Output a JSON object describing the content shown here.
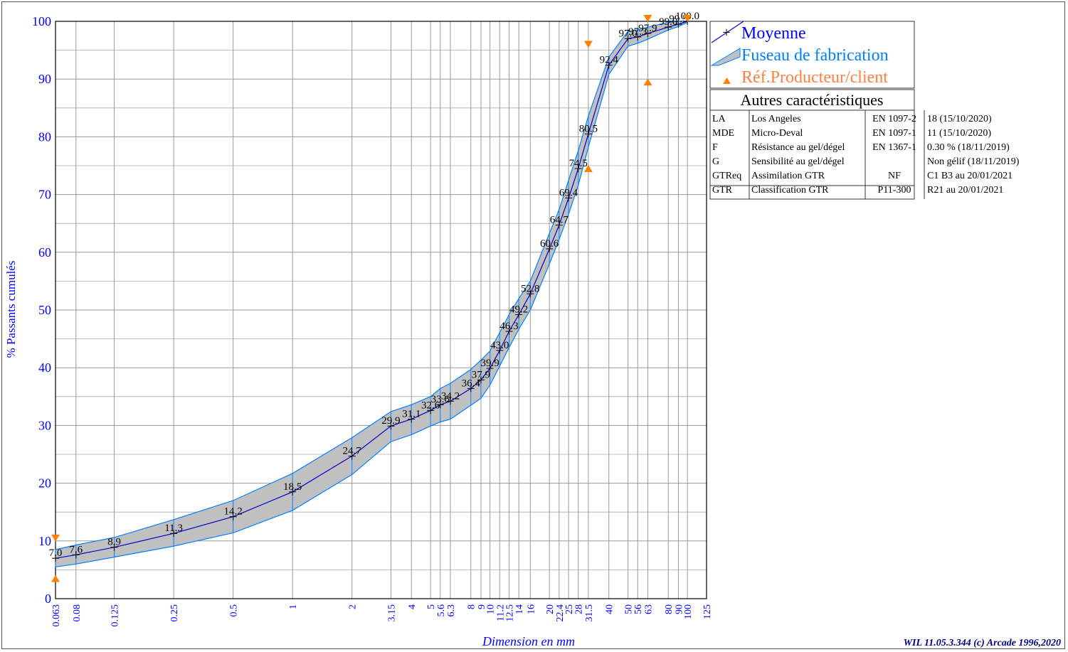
{
  "chart_data": {
    "type": "line",
    "title": "",
    "xlabel": "Dimension en mm",
    "ylabel": "% Passants cumulés",
    "x_scale": "log",
    "xlim": [
      0.063,
      125
    ],
    "ylim": [
      0,
      100
    ],
    "grid": true,
    "legend_position": "top-right",
    "x_ticks": [
      "0.063",
      "0.08",
      "0.125",
      "0.25",
      "0.5",
      "1",
      "2",
      "3.15",
      "4",
      "5",
      "5.6",
      "6.3",
      "8",
      "9",
      "10",
      "11.2",
      "12.5",
      "14",
      "16",
      "20",
      "22.4",
      "25",
      "28",
      "31.5",
      "40",
      "50",
      "56",
      "63",
      "80",
      "90",
      "100",
      "125"
    ],
    "y_ticks": [
      "0",
      "10",
      "20",
      "30",
      "40",
      "50",
      "60",
      "70",
      "80",
      "90",
      "100"
    ],
    "series": [
      {
        "name": "Moyenne",
        "color": "#0000cc",
        "x": [
          0.063,
          0.08,
          0.125,
          0.25,
          0.5,
          1,
          2,
          3.15,
          4,
          5,
          5.6,
          6.3,
          8,
          9,
          10,
          11.2,
          12.5,
          14,
          16,
          20,
          22.4,
          25,
          28,
          31.5,
          40,
          50,
          56,
          63,
          80,
          90,
          100
        ],
        "y": [
          7.0,
          7.6,
          8.9,
          11.3,
          14.2,
          18.5,
          24.7,
          29.9,
          31.1,
          32.6,
          33.6,
          34.2,
          36.4,
          37.9,
          39.9,
          43.0,
          46.3,
          49.2,
          52.8,
          60.6,
          64.7,
          69.4,
          74.5,
          80.5,
          92.4,
          97.0,
          97.3,
          97.9,
          99.0,
          99.5,
          100.0
        ],
        "labels": [
          "7.0",
          "7.6",
          "8.9",
          "11.3",
          "14.2",
          "18.5",
          "24.7",
          "29.9",
          "31.1",
          "32.6",
          "33.6",
          "34.2",
          "36.4",
          "37.9",
          "39.9",
          "43.0",
          "46.3",
          "49.2",
          "52.8",
          "60.6",
          "64.7",
          "69.4",
          "74.5",
          "80.5",
          "92.4",
          "97.0",
          "97.3",
          "97.9",
          "99.0",
          "99.5",
          "100.0"
        ]
      },
      {
        "name": "Fuseau de fabrication",
        "color": "#0080ff",
        "fill": "#c0c0c0",
        "x": [
          0.063,
          0.08,
          0.125,
          0.25,
          0.5,
          1,
          2,
          3.15,
          4,
          5,
          5.6,
          6.3,
          8,
          9,
          10,
          11.2,
          12.5,
          14,
          16,
          20,
          22.4,
          25,
          28,
          31.5,
          40,
          50,
          56,
          63,
          80,
          90,
          100
        ],
        "upper": [
          8.5,
          9.3,
          10.6,
          13.7,
          17.0,
          21.7,
          27.9,
          32.4,
          33.6,
          35.0,
          36.4,
          37.3,
          39.7,
          41.3,
          42.9,
          46.1,
          49.2,
          52.0,
          55.0,
          63.3,
          67.4,
          72.5,
          77.6,
          83.6,
          93.8,
          98.3,
          98.5,
          99.0,
          99.8,
          100.0,
          100.0
        ],
        "lower": [
          5.5,
          6.0,
          7.2,
          9.1,
          11.4,
          15.3,
          21.5,
          27.2,
          28.4,
          29.9,
          30.6,
          31.1,
          33.5,
          34.7,
          37.0,
          40.3,
          43.5,
          46.7,
          50.0,
          58.0,
          62.2,
          66.6,
          71.6,
          78.2,
          90.8,
          95.7,
          96.2,
          96.9,
          98.5,
          99.1,
          99.8
        ]
      },
      {
        "name": "Réf.Producteur/client",
        "color": "#ff8000",
        "points_up": [
          [
            0.063,
            3.5
          ],
          [
            31.5,
            74.5
          ],
          [
            63,
            89.5
          ]
        ],
        "points_down": [
          [
            0.063,
            10.5
          ],
          [
            31.5,
            96
          ],
          [
            63,
            100.5
          ],
          [
            100,
            100.5
          ]
        ]
      }
    ]
  },
  "legend": {
    "items": [
      {
        "label": "Moyenne",
        "color": "#0000ff"
      },
      {
        "label": "Fuseau de fabrication",
        "color": "#0080ff"
      },
      {
        "label": "Réf.Producteur/client",
        "color": "#ff8040"
      }
    ]
  },
  "characteristics": {
    "title": "Autres caractéristiques",
    "rows": [
      {
        "code": "LA",
        "name": "Los Angeles",
        "norm": "EN 1097-2",
        "value": "18   (15/10/2020)"
      },
      {
        "code": "MDE",
        "name": "Micro-Deval",
        "norm": "EN 1097-1",
        "value": "11   (15/10/2020)"
      },
      {
        "code": "F",
        "name": "Résistance au gel/dégel",
        "norm": "EN 1367-1",
        "value": "0.30 %  (18/11/2019)"
      },
      {
        "code": "G",
        "name": "Sensibilité au gel/dégel",
        "norm": "",
        "value": "Non gélif  (18/11/2019)"
      },
      {
        "code": "GTReq",
        "name": "Assimilation GTR",
        "norm": "NF",
        "value": "C1 B3  au 20/01/2021"
      },
      {
        "code": "GTR",
        "name": "Classification GTR",
        "norm": "P11-300",
        "value": "R21  au 20/01/2021"
      }
    ]
  },
  "footer": {
    "credit": "WIL 11.05.3.344 (c) Arcade 1996,2020"
  }
}
